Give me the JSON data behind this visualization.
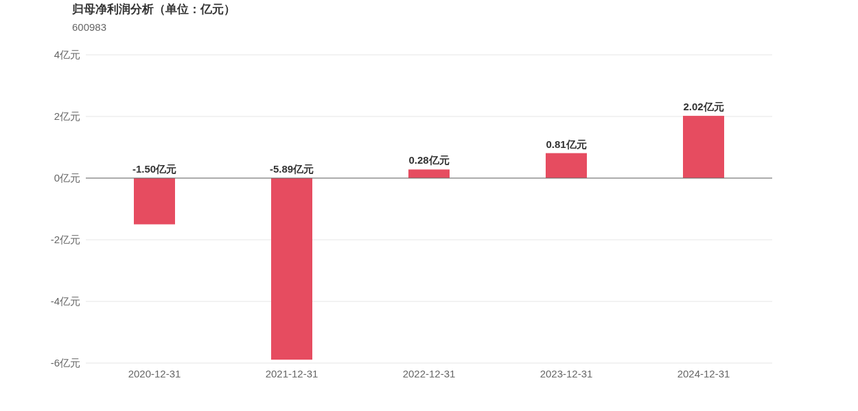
{
  "chart_data": {
    "type": "bar",
    "title": "归母净利润分析（单位：亿元）",
    "subtitle": "600983",
    "categories": [
      "2020-12-31",
      "2021-12-31",
      "2022-12-31",
      "2023-12-31",
      "2024-12-31"
    ],
    "values": [
      -1.5,
      -5.89,
      0.28,
      0.81,
      2.02
    ],
    "value_labels": [
      "-1.50亿元",
      "-5.89亿元",
      "0.28亿元",
      "0.81亿元",
      "2.02亿元"
    ],
    "color": "#e64c60",
    "ylim": [
      -6,
      4
    ],
    "yticks": [
      {
        "value": 4,
        "label": "4亿元"
      },
      {
        "value": 2,
        "label": "2亿元"
      },
      {
        "value": 0,
        "label": "0亿元"
      },
      {
        "value": -2,
        "label": "-2亿元"
      },
      {
        "value": -4,
        "label": "-4亿元"
      },
      {
        "value": -6,
        "label": "-6亿元"
      }
    ],
    "grid": "y"
  }
}
